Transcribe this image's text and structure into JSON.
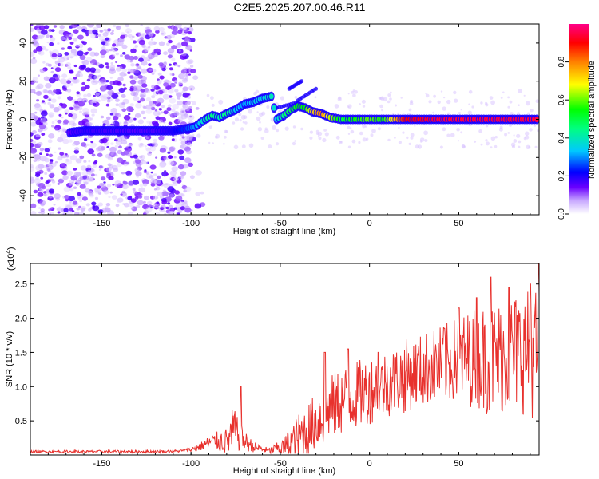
{
  "title": "C2E5.2025.207.00.46.R11",
  "chart_data": [
    {
      "type": "heatmap",
      "xlabel": "Height of straight line (km)",
      "ylabel": "Frequency (Hz)",
      "xlim": [
        -190,
        95
      ],
      "ylim": [
        -50,
        50
      ],
      "xticks": [
        -150,
        -100,
        -50,
        0,
        50
      ],
      "yticks": [
        -40,
        -20,
        0,
        20,
        40
      ],
      "colorbar": {
        "label": "Normalized spectral amplitude",
        "range": [
          0,
          1
        ],
        "ticks": [
          "0.0",
          "0.2",
          "0.4",
          "0.6",
          "0.8"
        ],
        "ticks_values": [
          0,
          0.2,
          0.4,
          0.6,
          0.8
        ],
        "colormap": [
          "#ffffff",
          "#6a00ff",
          "#0000ff",
          "#00c8ff",
          "#00ff00",
          "#ffff00",
          "#ff8000",
          "#ff0000",
          "#ff0088"
        ]
      },
      "noise_region_x": [
        -190,
        -100
      ],
      "track": [
        {
          "x": -168,
          "y": -7,
          "v": 0.15
        },
        {
          "x": -160,
          "y": -6,
          "v": 0.18
        },
        {
          "x": -132,
          "y": -6,
          "v": 0.15
        },
        {
          "x": -120,
          "y": -6,
          "v": 0.16
        },
        {
          "x": -110,
          "y": -6,
          "v": 0.2
        },
        {
          "x": -103,
          "y": -5,
          "v": 0.25
        },
        {
          "x": -98,
          "y": -4,
          "v": 0.3
        },
        {
          "x": -92,
          "y": 0,
          "v": 0.4
        },
        {
          "x": -88,
          "y": 2,
          "v": 0.45
        },
        {
          "x": -84,
          "y": 1,
          "v": 0.4
        },
        {
          "x": -80,
          "y": 3,
          "v": 0.45
        },
        {
          "x": -75,
          "y": 5,
          "v": 0.35
        },
        {
          "x": -70,
          "y": 8,
          "v": 0.3
        },
        {
          "x": -65,
          "y": 9,
          "v": 0.35
        },
        {
          "x": -60,
          "y": 11,
          "v": 0.35
        },
        {
          "x": -55,
          "y": 12,
          "v": 0.4
        },
        {
          "x": -52,
          "y": 0,
          "v": 0.35
        },
        {
          "x": -48,
          "y": 2,
          "v": 0.45
        },
        {
          "x": -44,
          "y": 5,
          "v": 0.5
        },
        {
          "x": -40,
          "y": 7,
          "v": 0.55
        },
        {
          "x": -36,
          "y": 6,
          "v": 0.55
        },
        {
          "x": -32,
          "y": 4,
          "v": 0.7
        },
        {
          "x": -27,
          "y": 3,
          "v": 0.8
        },
        {
          "x": -22,
          "y": 1,
          "v": 0.65
        },
        {
          "x": -16,
          "y": 0,
          "v": 0.5
        },
        {
          "x": -8,
          "y": 0,
          "v": 0.55
        },
        {
          "x": 0,
          "y": 0,
          "v": 0.6
        },
        {
          "x": 8,
          "y": 0,
          "v": 0.55
        },
        {
          "x": 20,
          "y": 0,
          "v": 0.9
        },
        {
          "x": 40,
          "y": 0,
          "v": 0.95
        },
        {
          "x": 60,
          "y": 0,
          "v": 0.95
        },
        {
          "x": 80,
          "y": 0,
          "v": 0.95
        },
        {
          "x": 95,
          "y": 0,
          "v": 0.95
        }
      ],
      "secondary_tracks": [
        {
          "x": [
            -45,
            -38
          ],
          "y": [
            16,
            20
          ],
          "v": 0.2
        },
        {
          "x": [
            -40,
            -30
          ],
          "y": [
            10,
            16
          ],
          "v": 0.2
        },
        {
          "x": [
            -52,
            -40
          ],
          "y": [
            6,
            9
          ],
          "v": 0.2
        }
      ]
    },
    {
      "type": "line",
      "xlabel": "Height of straight line (km)",
      "ylabel": "SNR (10 * v/v)",
      "y_multiplier_label": "(x10",
      "y_multiplier_exp": "4",
      "y_multiplier_close": ")",
      "xlim": [
        -190,
        95
      ],
      "ylim": [
        0,
        2.8
      ],
      "xticks": [
        -150,
        -100,
        -50,
        0,
        50
      ],
      "yticks": [
        0.5,
        1.0,
        1.5,
        2.0,
        2.5
      ],
      "ytick_labels": [
        "0.5",
        "1.0",
        "1.5",
        "2.0",
        "2.5"
      ],
      "line_color": "#e8312d",
      "series": [
        {
          "envelope_x": [
            -190,
            -120,
            -105,
            -100,
            -95,
            -90,
            -85,
            -80,
            -76,
            -74,
            -70,
            -65,
            -60,
            -56,
            -52,
            -48,
            -44,
            -40,
            -38,
            -35,
            -32,
            -30,
            -27,
            -25,
            -22,
            -20,
            -15,
            -10,
            -5,
            0,
            5,
            10,
            15,
            20,
            25,
            30,
            35,
            40,
            45,
            50,
            55,
            60,
            65,
            70,
            75,
            80,
            85,
            90,
            95
          ],
          "baseline": [
            0.05,
            0.05,
            0.06,
            0.08,
            0.12,
            0.18,
            0.2,
            0.2,
            0.35,
            0.3,
            0.2,
            0.12,
            0.08,
            0.06,
            0.1,
            0.12,
            0.18,
            0.25,
            0.3,
            0.35,
            0.45,
            0.5,
            0.55,
            0.6,
            0.7,
            0.72,
            0.8,
            0.85,
            0.9,
            0.95,
            1.0,
            1.05,
            1.1,
            1.15,
            1.2,
            1.25,
            1.3,
            1.3,
            1.35,
            1.4,
            1.4,
            1.45,
            1.4,
            1.4,
            1.45,
            1.5,
            1.5,
            1.5,
            1.5
          ],
          "amplitude": [
            0.02,
            0.02,
            0.02,
            0.03,
            0.06,
            0.1,
            0.15,
            0.2,
            0.4,
            0.25,
            0.15,
            0.08,
            0.05,
            0.05,
            0.08,
            0.15,
            0.25,
            0.35,
            0.4,
            0.4,
            0.4,
            0.45,
            0.5,
            0.45,
            0.45,
            0.5,
            0.5,
            0.5,
            0.5,
            0.5,
            0.5,
            0.5,
            0.5,
            0.55,
            0.5,
            0.55,
            0.55,
            0.6,
            0.6,
            0.65,
            0.7,
            0.75,
            0.8,
            0.85,
            0.85,
            0.9,
            0.9,
            0.95,
            1.0
          ],
          "peaks": [
            {
              "x": -72,
              "y": 1.0
            },
            {
              "x": -25,
              "y": 1.5
            },
            {
              "x": -12,
              "y": 1.55
            },
            {
              "x": 5,
              "y": 1.5
            },
            {
              "x": 42,
              "y": 1.85
            },
            {
              "x": 50,
              "y": 2.15
            },
            {
              "x": 60,
              "y": 2.3
            },
            {
              "x": 68,
              "y": 2.6
            },
            {
              "x": 78,
              "y": 2.45
            },
            {
              "x": 90,
              "y": 2.5
            },
            {
              "x": 95,
              "y": 2.8
            }
          ]
        }
      ]
    }
  ]
}
